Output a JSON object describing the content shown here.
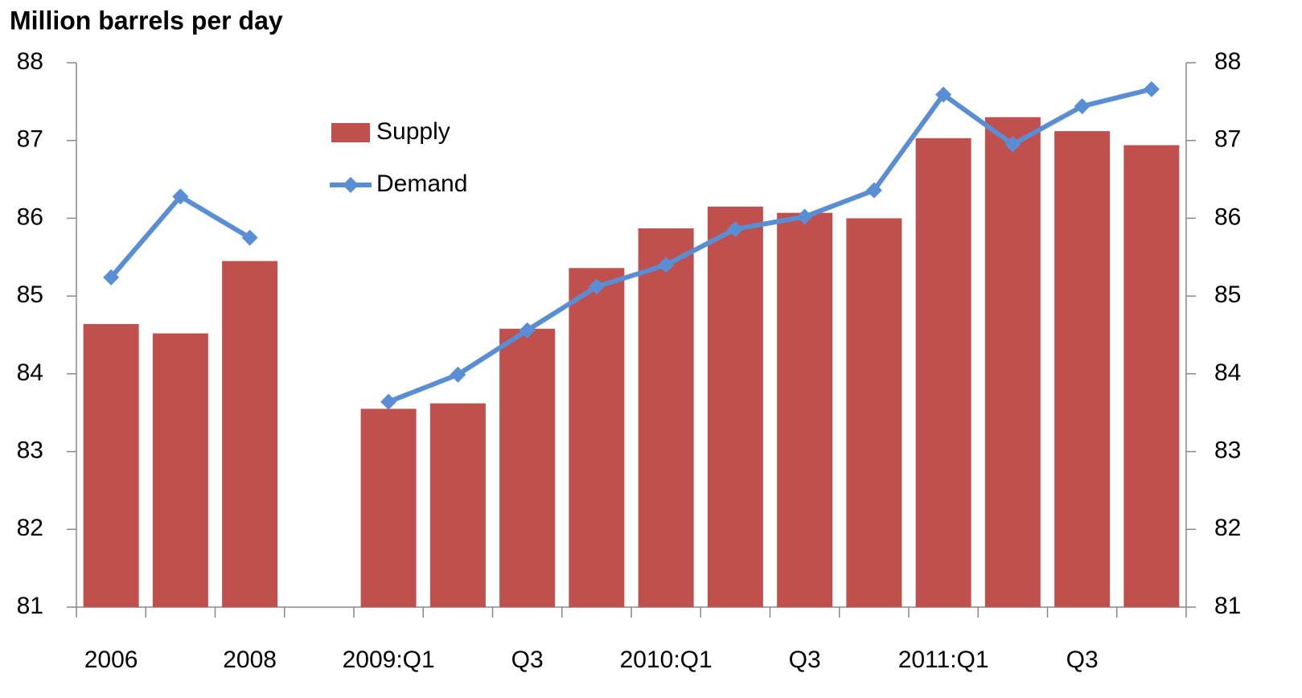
{
  "chart_data": {
    "type": "bar_line",
    "title": "Million barrels per day",
    "categories": [
      "2006",
      null,
      "2008",
      null,
      "2009:Q1",
      null,
      "Q3",
      null,
      "2010:Q1",
      null,
      "Q3",
      null,
      "2011:Q1",
      null,
      "Q3",
      null
    ],
    "series": [
      {
        "name": "Supply",
        "type": "bar",
        "color": "#c0504d",
        "values": [
          84.64,
          84.52,
          85.45,
          null,
          83.55,
          83.62,
          84.58,
          85.36,
          85.87,
          86.15,
          86.07,
          86.0,
          87.03,
          87.3,
          87.12,
          86.94
        ]
      },
      {
        "name": "Demand",
        "type": "line",
        "axis": "y2",
        "color": "#5a8ed4",
        "values": [
          85.24,
          86.28,
          85.75,
          null,
          83.64,
          83.99,
          84.56,
          85.12,
          85.4,
          85.86,
          86.02,
          86.36,
          87.59,
          86.95,
          87.44,
          87.66
        ]
      }
    ],
    "ylim": [
      81,
      88
    ],
    "yticks": [
      81,
      82,
      83,
      84,
      85,
      86,
      87,
      88
    ],
    "y2lim": [
      81,
      88
    ],
    "y2ticks": [
      81,
      82,
      83,
      84,
      85,
      86,
      87,
      88
    ],
    "legend": "top-left",
    "grid": false
  }
}
